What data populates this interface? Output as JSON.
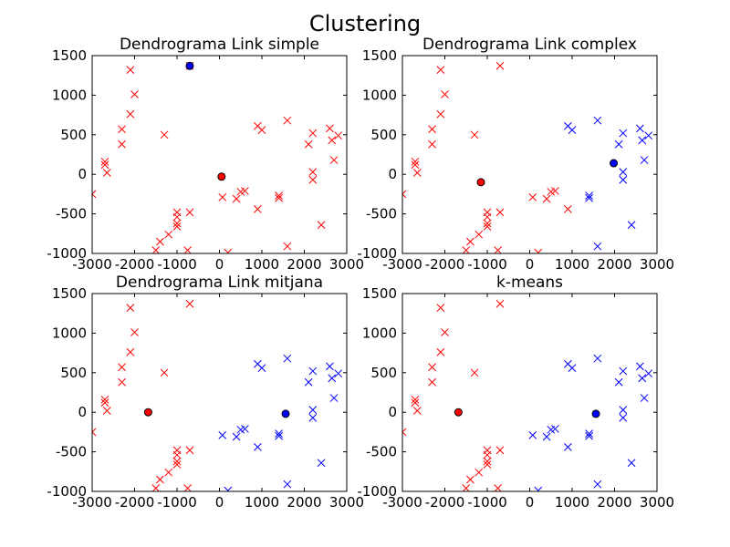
{
  "figure": {
    "title": "Clustering"
  },
  "colors": {
    "cluster_a": "#ff0000",
    "cluster_b": "#0000ff",
    "centroid_edge": "#000000"
  },
  "chart_data": [
    {
      "type": "scatter",
      "title": "Dendrograma Link simple",
      "xlim": [
        -3000,
        3000
      ],
      "ylim": [
        -1000,
        1500
      ],
      "xticks": [
        "-3000",
        "-2000",
        "-1000",
        "0",
        "1000",
        "2000",
        "3000"
      ],
      "yticks": [
        "-1000",
        "-500",
        "0",
        "500",
        "1000",
        "1500"
      ],
      "series": [
        {
          "marker": "x",
          "color": "#ff0000",
          "points": [
            [
              -3000,
              -250
            ],
            [
              -2700,
              120
            ],
            [
              -2700,
              160
            ],
            [
              -2650,
              20
            ],
            [
              -2300,
              570
            ],
            [
              -2300,
              380
            ],
            [
              -2100,
              1320
            ],
            [
              -2100,
              760
            ],
            [
              -2000,
              1010
            ],
            [
              -1300,
              500
            ],
            [
              -1400,
              -850
            ],
            [
              -1500,
              -960
            ],
            [
              -1200,
              -760
            ],
            [
              -1000,
              -480
            ],
            [
              -1000,
              -540
            ],
            [
              -1000,
              -620
            ],
            [
              -1000,
              -660
            ],
            [
              -700,
              -480
            ],
            [
              -750,
              -960
            ],
            [
              -700,
              1370
            ],
            [
              70,
              -290
            ],
            [
              200,
              -990
            ],
            [
              400,
              -310
            ],
            [
              500,
              -220
            ],
            [
              600,
              -210
            ],
            [
              900,
              -440
            ],
            [
              900,
              610
            ],
            [
              1000,
              560
            ],
            [
              1400,
              -300
            ],
            [
              1400,
              -270
            ],
            [
              1600,
              680
            ],
            [
              1600,
              -910
            ],
            [
              2100,
              380
            ],
            [
              2200,
              520
            ],
            [
              2200,
              30
            ],
            [
              2200,
              -70
            ],
            [
              2400,
              -640
            ],
            [
              2600,
              580
            ],
            [
              2650,
              430
            ],
            [
              2700,
              180
            ],
            [
              2800,
              490
            ]
          ]
        },
        {
          "marker": "o",
          "color": "#0000ff",
          "role": "centroid",
          "points": [
            [
              -700,
              1370
            ]
          ]
        },
        {
          "marker": "o",
          "color": "#ff0000",
          "role": "centroid",
          "points": [
            [
              50,
              -30
            ]
          ]
        }
      ]
    },
    {
      "type": "scatter",
      "title": "Dendrograma Link complex",
      "xlim": [
        -3000,
        3000
      ],
      "ylim": [
        -1000,
        1500
      ],
      "xticks": [
        "-3000",
        "-2000",
        "-1000",
        "0",
        "1000",
        "2000",
        "3000"
      ],
      "yticks": [
        "-1000",
        "-500",
        "0",
        "500",
        "1000",
        "1500"
      ],
      "series": [
        {
          "marker": "x",
          "color": "#ff0000",
          "points": [
            [
              -3000,
              -250
            ],
            [
              -2700,
              120
            ],
            [
              -2700,
              160
            ],
            [
              -2650,
              20
            ],
            [
              -2300,
              570
            ],
            [
              -2300,
              380
            ],
            [
              -2100,
              1320
            ],
            [
              -2100,
              760
            ],
            [
              -2000,
              1010
            ],
            [
              -1300,
              500
            ],
            [
              -1400,
              -850
            ],
            [
              -1500,
              -960
            ],
            [
              -1200,
              -760
            ],
            [
              -1000,
              -480
            ],
            [
              -1000,
              -540
            ],
            [
              -1000,
              -620
            ],
            [
              -1000,
              -660
            ],
            [
              -700,
              -480
            ],
            [
              -750,
              -960
            ],
            [
              -700,
              1370
            ],
            [
              70,
              -290
            ],
            [
              200,
              -990
            ],
            [
              400,
              -310
            ],
            [
              500,
              -220
            ],
            [
              600,
              -210
            ],
            [
              900,
              -440
            ]
          ]
        },
        {
          "marker": "x",
          "color": "#0000ff",
          "points": [
            [
              900,
              610
            ],
            [
              1000,
              560
            ],
            [
              1400,
              -300
            ],
            [
              1400,
              -270
            ],
            [
              1600,
              680
            ],
            [
              1600,
              -910
            ],
            [
              2100,
              380
            ],
            [
              2200,
              520
            ],
            [
              2200,
              30
            ],
            [
              2200,
              -70
            ],
            [
              2400,
              -640
            ],
            [
              2600,
              580
            ],
            [
              2650,
              430
            ],
            [
              2700,
              180
            ],
            [
              2800,
              490
            ]
          ]
        },
        {
          "marker": "o",
          "color": "#ff0000",
          "role": "centroid",
          "points": [
            [
              -1150,
              -100
            ]
          ]
        },
        {
          "marker": "o",
          "color": "#0000ff",
          "role": "centroid",
          "points": [
            [
              1980,
              140
            ]
          ]
        }
      ]
    },
    {
      "type": "scatter",
      "title": "Dendrograma Link mitjana",
      "xlim": [
        -3000,
        3000
      ],
      "ylim": [
        -1000,
        1500
      ],
      "xticks": [
        "-3000",
        "-2000",
        "-1000",
        "0",
        "1000",
        "2000",
        "3000"
      ],
      "yticks": [
        "-1000",
        "-500",
        "0",
        "500",
        "1000",
        "1500"
      ],
      "series": [
        {
          "marker": "x",
          "color": "#ff0000",
          "points": [
            [
              -3000,
              -250
            ],
            [
              -2700,
              120
            ],
            [
              -2700,
              160
            ],
            [
              -2650,
              20
            ],
            [
              -2300,
              570
            ],
            [
              -2300,
              380
            ],
            [
              -2100,
              1320
            ],
            [
              -2100,
              760
            ],
            [
              -2000,
              1010
            ],
            [
              -1300,
              500
            ],
            [
              -1400,
              -850
            ],
            [
              -1500,
              -960
            ],
            [
              -1200,
              -760
            ],
            [
              -1000,
              -480
            ],
            [
              -1000,
              -540
            ],
            [
              -1000,
              -620
            ],
            [
              -1000,
              -660
            ],
            [
              -700,
              -480
            ],
            [
              -750,
              -960
            ],
            [
              -700,
              1370
            ]
          ]
        },
        {
          "marker": "x",
          "color": "#0000ff",
          "points": [
            [
              70,
              -290
            ],
            [
              200,
              -990
            ],
            [
              400,
              -310
            ],
            [
              500,
              -220
            ],
            [
              600,
              -210
            ],
            [
              900,
              -440
            ],
            [
              900,
              610
            ],
            [
              1000,
              560
            ],
            [
              1400,
              -300
            ],
            [
              1400,
              -270
            ],
            [
              1600,
              680
            ],
            [
              1600,
              -910
            ],
            [
              2100,
              380
            ],
            [
              2200,
              520
            ],
            [
              2200,
              30
            ],
            [
              2200,
              -70
            ],
            [
              2400,
              -640
            ],
            [
              2600,
              580
            ],
            [
              2650,
              430
            ],
            [
              2700,
              180
            ],
            [
              2800,
              490
            ]
          ]
        },
        {
          "marker": "o",
          "color": "#ff0000",
          "role": "centroid",
          "points": [
            [
              -1680,
              0
            ]
          ]
        },
        {
          "marker": "o",
          "color": "#0000ff",
          "role": "centroid",
          "points": [
            [
              1560,
              -20
            ]
          ]
        }
      ]
    },
    {
      "type": "scatter",
      "title": "k-means",
      "xlim": [
        -3000,
        3000
      ],
      "ylim": [
        -1000,
        1500
      ],
      "xticks": [
        "-3000",
        "-2000",
        "-1000",
        "0",
        "1000",
        "2000",
        "3000"
      ],
      "yticks": [
        "-1000",
        "-500",
        "0",
        "500",
        "1000",
        "1500"
      ],
      "series": [
        {
          "marker": "x",
          "color": "#ff0000",
          "points": [
            [
              -3000,
              -250
            ],
            [
              -2700,
              120
            ],
            [
              -2700,
              160
            ],
            [
              -2650,
              20
            ],
            [
              -2300,
              570
            ],
            [
              -2300,
              380
            ],
            [
              -2100,
              1320
            ],
            [
              -2100,
              760
            ],
            [
              -2000,
              1010
            ],
            [
              -1300,
              500
            ],
            [
              -1400,
              -850
            ],
            [
              -1500,
              -960
            ],
            [
              -1200,
              -760
            ],
            [
              -1000,
              -480
            ],
            [
              -1000,
              -540
            ],
            [
              -1000,
              -620
            ],
            [
              -1000,
              -660
            ],
            [
              -700,
              -480
            ],
            [
              -750,
              -960
            ],
            [
              -700,
              1370
            ]
          ]
        },
        {
          "marker": "x",
          "color": "#0000ff",
          "points": [
            [
              70,
              -290
            ],
            [
              200,
              -990
            ],
            [
              400,
              -310
            ],
            [
              500,
              -220
            ],
            [
              600,
              -210
            ],
            [
              900,
              -440
            ],
            [
              900,
              610
            ],
            [
              1000,
              560
            ],
            [
              1400,
              -300
            ],
            [
              1400,
              -270
            ],
            [
              1600,
              680
            ],
            [
              1600,
              -910
            ],
            [
              2100,
              380
            ],
            [
              2200,
              520
            ],
            [
              2200,
              30
            ],
            [
              2200,
              -70
            ],
            [
              2400,
              -640
            ],
            [
              2600,
              580
            ],
            [
              2650,
              430
            ],
            [
              2700,
              180
            ],
            [
              2800,
              490
            ]
          ]
        },
        {
          "marker": "o",
          "color": "#ff0000",
          "role": "centroid",
          "points": [
            [
              -1680,
              0
            ]
          ]
        },
        {
          "marker": "o",
          "color": "#0000ff",
          "role": "centroid",
          "points": [
            [
              1560,
              -20
            ]
          ]
        }
      ]
    }
  ]
}
